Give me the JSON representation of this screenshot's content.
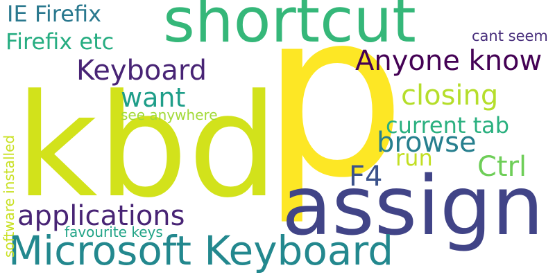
{
  "words": {
    "p": {
      "text": "p",
      "color": "#fde725"
    },
    "kbd": {
      "text": "kbd",
      "color": "#d2e21b"
    },
    "assign": {
      "text": "assign",
      "color": "#414487"
    },
    "shortcut": {
      "text": "shortcut",
      "color": "#35b779"
    },
    "microsoft_keyboard": {
      "text": "Microsoft Keyboard",
      "color": "#23888e"
    },
    "applications": {
      "text": "applications",
      "color": "#482475"
    },
    "keyboard": {
      "text": "Keyboard",
      "color": "#482475"
    },
    "anyone_know": {
      "text": "Anyone know",
      "color": "#440154"
    },
    "closing": {
      "text": "closing",
      "color": "#b5de2b"
    },
    "ie_firefix": {
      "text": "IE Firefix",
      "color": "#2a788e"
    },
    "firefix_etc": {
      "text": "Firefix etc",
      "color": "#26ad81"
    },
    "want": {
      "text": "want",
      "color": "#1f9e89"
    },
    "current_tab": {
      "text": "current tab",
      "color": "#2ab07f"
    },
    "browse": {
      "text": "browse",
      "color": "#277f8e"
    },
    "ctrl": {
      "text": "Ctrl",
      "color": "#6ece58"
    },
    "run": {
      "text": "run",
      "color": "#c2df23"
    },
    "f4": {
      "text": "F4",
      "color": "#3b528b"
    },
    "see_anywhere": {
      "text": "see anywhere",
      "color": "#a2da37"
    },
    "cant_seem": {
      "text": "cant seem",
      "color": "#472d7b"
    },
    "software_installed": {
      "text": "software installed",
      "color": "#c8e020"
    },
    "favourite_keys": {
      "text": "favourite keys",
      "color": "#20a386"
    }
  }
}
